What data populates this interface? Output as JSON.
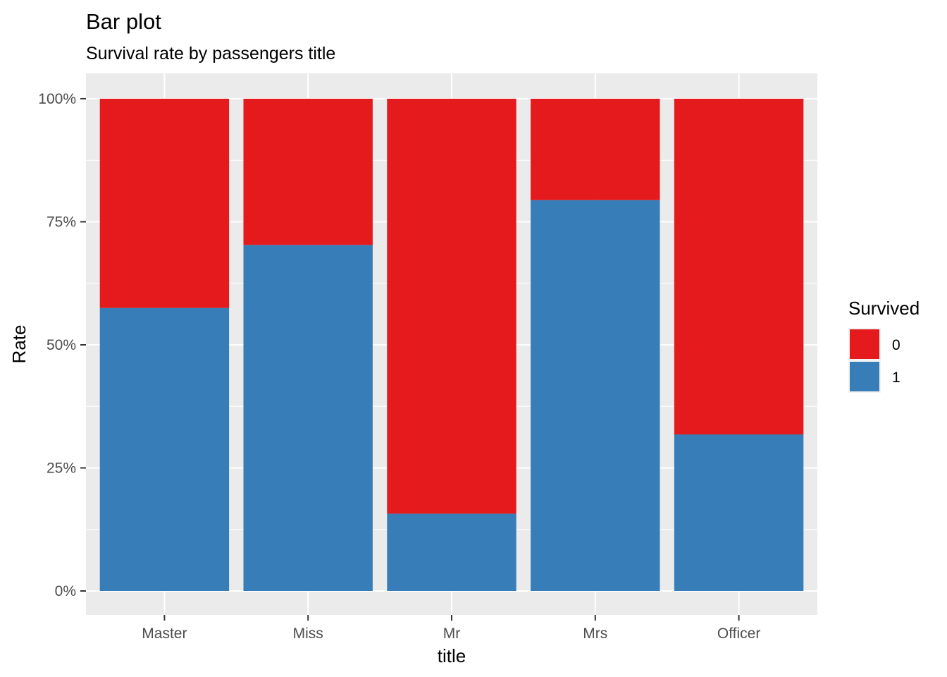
{
  "chart_data": {
    "type": "bar",
    "stacked": true,
    "title": "Bar plot",
    "subtitle": "Survival rate by passengers title",
    "xlabel": "title",
    "ylabel": "Rate",
    "categories": [
      "Master",
      "Miss",
      "Mr",
      "Mrs",
      "Officer"
    ],
    "series": [
      {
        "name": "0",
        "color": "#E41A1C",
        "values": [
          0.425,
          0.297,
          0.843,
          0.206,
          0.682
        ]
      },
      {
        "name": "1",
        "color": "#377EB8",
        "values": [
          0.575,
          0.703,
          0.157,
          0.794,
          0.318
        ]
      }
    ],
    "ylim": [
      0,
      1
    ],
    "yticks": [
      0,
      0.25,
      0.5,
      0.75,
      1
    ],
    "ytick_labels": [
      "0%",
      "25%",
      "50%",
      "75%",
      "100%"
    ],
    "grid": true,
    "panel_background": "#EBEBEB",
    "legend": {
      "title": "Survived",
      "position": "right",
      "entries": [
        "0",
        "1"
      ]
    }
  }
}
